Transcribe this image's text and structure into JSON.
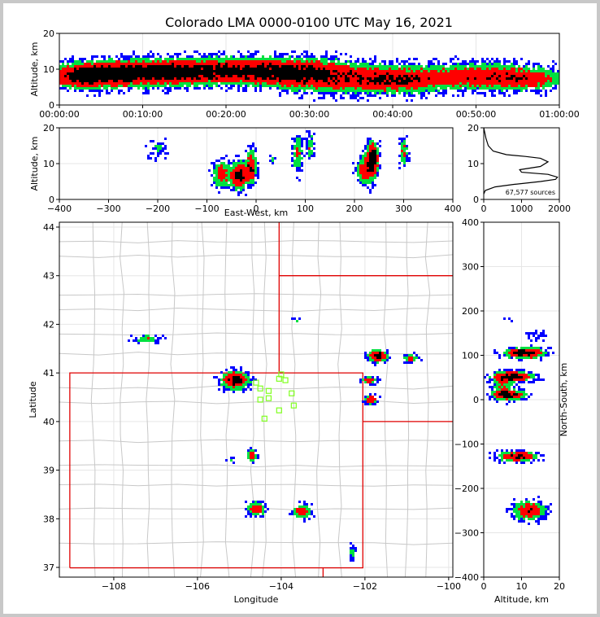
{
  "figure": {
    "title": "Colorado LMA 0000-0100 UTC May 16, 2021"
  },
  "colors": {
    "density_low": "#0000ff",
    "density_mid": "#00e040",
    "density_high": "#ff0000",
    "density_peak": "#000000",
    "state_border": "#e00000",
    "county_border": "#c8c8c8",
    "station": "#80ff20",
    "grid": "#e6e6e6"
  },
  "chart_data": [
    {
      "id": "time-altitude",
      "type": "heatmap",
      "xlabel": "",
      "ylabel": "Altitude, km",
      "xlim": [
        0,
        60
      ],
      "ylim": [
        0,
        20
      ],
      "x_ticks": [
        0,
        10,
        20,
        30,
        40,
        50,
        60
      ],
      "x_tick_labels": [
        "00:00:00",
        "00:10:00",
        "00:20:00",
        "00:30:00",
        "00:40:00",
        "00:50:00",
        "01:00:00"
      ],
      "y_ticks": [
        0,
        10,
        20
      ],
      "y_tick_labels": [
        "0",
        "10",
        "20"
      ],
      "grid": true,
      "clusters": [
        {
          "x": 3,
          "y": 8,
          "sx": 3,
          "sy": 2.2,
          "amp": 1.0
        },
        {
          "x": 10,
          "y": 9,
          "sx": 5,
          "sy": 2.4,
          "amp": 1.15
        },
        {
          "x": 22,
          "y": 9.5,
          "sx": 6,
          "sy": 2.4,
          "amp": 1.1
        },
        {
          "x": 31,
          "y": 8,
          "sx": 4,
          "sy": 3,
          "amp": 0.8
        },
        {
          "x": 40,
          "y": 7,
          "sx": 4,
          "sy": 2.5,
          "amp": 0.9
        },
        {
          "x": 51,
          "y": 8,
          "sx": 5,
          "sy": 2.5,
          "amp": 0.8
        },
        {
          "x": 57,
          "y": 7,
          "sx": 3,
          "sy": 2,
          "amp": 0.45
        }
      ]
    },
    {
      "id": "ew-altitude",
      "type": "heatmap",
      "xlabel": "East-West, km",
      "ylabel": "Altitude, km",
      "xlim": [
        -400,
        400
      ],
      "ylim": [
        0,
        20
      ],
      "x_ticks": [
        -400,
        -300,
        -200,
        -100,
        0,
        100,
        200,
        300,
        400
      ],
      "x_tick_labels": [
        "−400",
        "−300",
        "−200",
        "−100",
        "0",
        "100",
        "200",
        "300",
        "400"
      ],
      "y_ticks": [
        0,
        10,
        20
      ],
      "y_tick_labels": [
        "0",
        "10",
        "20"
      ],
      "grid": true,
      "clusters": [
        {
          "x": -35,
          "y": 6.5,
          "sx": 10,
          "sy": 2.5,
          "amp": 1.25
        },
        {
          "x": -10,
          "y": 9,
          "sx": 7,
          "sy": 3,
          "amp": 1.05
        },
        {
          "x": -70,
          "y": 7,
          "sx": 12,
          "sy": 2.5,
          "amp": 0.8
        },
        {
          "x": 237,
          "y": 11.5,
          "sx": 8,
          "sy": 3,
          "amp": 1.3
        },
        {
          "x": 220,
          "y": 8,
          "sx": 12,
          "sy": 3,
          "amp": 0.7
        },
        {
          "x": 300,
          "y": 13,
          "sx": 6,
          "sy": 3,
          "amp": 0.6
        },
        {
          "x": 85,
          "y": 13,
          "sx": 8,
          "sy": 4,
          "amp": 0.55
        },
        {
          "x": 110,
          "y": 15,
          "sx": 5,
          "sy": 3,
          "amp": 0.5
        },
        {
          "x": -200,
          "y": 14,
          "sx": 15,
          "sy": 2,
          "amp": 0.35
        },
        {
          "x": 35,
          "y": 11,
          "sx": 5,
          "sy": 1,
          "amp": 0.4
        }
      ]
    },
    {
      "id": "altitude-histogram",
      "type": "line",
      "xlim": [
        0,
        2000
      ],
      "ylim": [
        0,
        20
      ],
      "x_ticks": [
        0,
        1000,
        2000
      ],
      "x_tick_labels": [
        "0",
        "1000",
        "2000"
      ],
      "y_ticks": [
        0,
        10,
        20
      ],
      "y_tick_labels": [
        "0",
        "10",
        "20"
      ],
      "annotation": "67,577 sources",
      "x": [
        0,
        40,
        300,
        800,
        1500,
        1900,
        1950,
        1700,
        1000,
        950,
        1500,
        1700,
        1500,
        1100,
        600,
        250,
        120,
        60,
        20,
        0
      ],
      "y": [
        1.5,
        2.5,
        3.5,
        4.2,
        5,
        5.6,
        6.2,
        7,
        7.6,
        8.3,
        9.2,
        10.5,
        11.5,
        12,
        12.5,
        13.5,
        15,
        17,
        19,
        20
      ]
    },
    {
      "id": "plan-view",
      "type": "heatmap",
      "xlabel": "Longitude",
      "ylabel": "Latitude",
      "xlim": [
        -109.3,
        -99.9
      ],
      "ylim": [
        36.8,
        44.1
      ],
      "x_ticks": [
        -108,
        -106,
        -104,
        -102,
        -100
      ],
      "x_tick_labels": [
        "−108",
        "−106",
        "−104",
        "−102",
        "−100"
      ],
      "y_ticks": [
        37,
        38,
        39,
        40,
        41,
        42,
        43,
        44
      ],
      "y_tick_labels": [
        "37",
        "38",
        "39",
        "40",
        "41",
        "42",
        "43",
        "44"
      ],
      "grid": true,
      "clusters": [
        {
          "x": -101.7,
          "y": 41.35,
          "sx": 0.15,
          "sy": 0.08,
          "amp": 1.25
        },
        {
          "x": -100.9,
          "y": 41.3,
          "sx": 0.12,
          "sy": 0.06,
          "amp": 0.7
        },
        {
          "x": -101.9,
          "y": 40.85,
          "sx": 0.12,
          "sy": 0.05,
          "amp": 0.8
        },
        {
          "x": -101.85,
          "y": 40.45,
          "sx": 0.1,
          "sy": 0.07,
          "amp": 0.85
        },
        {
          "x": -105.1,
          "y": 40.85,
          "sx": 0.22,
          "sy": 0.12,
          "amp": 1.2
        },
        {
          "x": -104.7,
          "y": 39.3,
          "sx": 0.07,
          "sy": 0.08,
          "amp": 1.0
        },
        {
          "x": -105.2,
          "y": 39.2,
          "sx": 0.08,
          "sy": 0.04,
          "amp": 0.5
        },
        {
          "x": -104.6,
          "y": 38.2,
          "sx": 0.15,
          "sy": 0.1,
          "amp": 0.8
        },
        {
          "x": -103.5,
          "y": 38.15,
          "sx": 0.15,
          "sy": 0.1,
          "amp": 0.8
        },
        {
          "x": -107.2,
          "y": 41.7,
          "sx": 0.25,
          "sy": 0.06,
          "amp": 0.5
        },
        {
          "x": -103.65,
          "y": 42.08,
          "sx": 0.05,
          "sy": 0.04,
          "amp": 0.45
        },
        {
          "x": -102.3,
          "y": 37.3,
          "sx": 0.05,
          "sy": 0.15,
          "amp": 0.4
        }
      ],
      "stations": [
        {
          "lon": -104.6,
          "lat": 40.8
        },
        {
          "lon": -104.5,
          "lat": 40.68
        },
        {
          "lon": -104.05,
          "lat": 40.88
        },
        {
          "lon": -103.9,
          "lat": 40.85
        },
        {
          "lon": -104.3,
          "lat": 40.63
        },
        {
          "lon": -103.75,
          "lat": 40.58
        },
        {
          "lon": -104.5,
          "lat": 40.45
        },
        {
          "lon": -104.3,
          "lat": 40.48
        },
        {
          "lon": -103.7,
          "lat": 40.33
        },
        {
          "lon": -104.05,
          "lat": 40.23
        },
        {
          "lon": -104.4,
          "lat": 40.06
        },
        {
          "lon": -104.0,
          "lat": 40.97
        }
      ]
    },
    {
      "id": "altitude-ns",
      "type": "heatmap",
      "xlabel": "Altitude, km",
      "ylabel": "North-South, km",
      "xlim": [
        0,
        20
      ],
      "ylim": [
        -400,
        400
      ],
      "x_ticks": [
        0,
        10,
        20
      ],
      "x_tick_labels": [
        "0",
        "10",
        "20"
      ],
      "y_ticks": [
        -400,
        -300,
        -200,
        -100,
        0,
        100,
        200,
        300,
        400
      ],
      "y_tick_labels": [
        "−400",
        "−300",
        "−200",
        "−100",
        "0",
        "100",
        "200",
        "300",
        "400"
      ],
      "grid": true,
      "clusters": [
        {
          "x": 11,
          "y": 105,
          "sx": 3.5,
          "sy": 8,
          "amp": 1.25
        },
        {
          "x": 8,
          "y": 52,
          "sx": 3.5,
          "sy": 8,
          "amp": 1.1
        },
        {
          "x": 7,
          "y": 10,
          "sx": 3,
          "sy": 7,
          "amp": 1.0
        },
        {
          "x": 9,
          "y": -128,
          "sx": 3.5,
          "sy": 8,
          "amp": 1.1
        },
        {
          "x": 12,
          "y": -250,
          "sx": 3,
          "sy": 15,
          "amp": 0.85
        },
        {
          "x": 7,
          "y": 180,
          "sx": 1.5,
          "sy": 3,
          "amp": 0.35
        },
        {
          "x": 14,
          "y": 145,
          "sx": 2,
          "sy": 8,
          "amp": 0.3
        },
        {
          "x": 5,
          "y": 30,
          "sx": 2,
          "sy": 20,
          "amp": 0.5
        }
      ]
    }
  ]
}
